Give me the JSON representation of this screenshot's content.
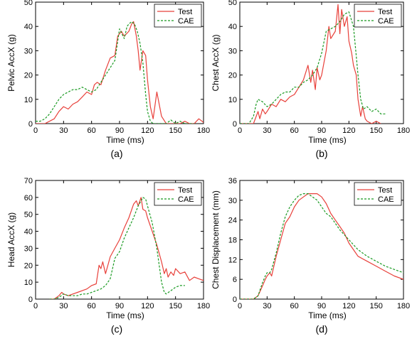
{
  "colors": {
    "test": "#e8403a",
    "cae": "#1a9a22",
    "axis": "#000000"
  },
  "chart_data": [
    {
      "panel": "(a)",
      "type": "line",
      "xlabel": "Time (ms)",
      "ylabel": "Pelvic AccX (g)",
      "xlim": [
        0,
        180
      ],
      "ylim": [
        0,
        50
      ],
      "xticks": [
        0,
        30,
        60,
        90,
        120,
        150,
        180
      ],
      "yticks": [
        0,
        10,
        20,
        30,
        40,
        50
      ],
      "legend": "top-right",
      "series": [
        {
          "name": "Test",
          "style": "solid",
          "color": "#e8403a",
          "x": [
            0,
            10,
            20,
            25,
            30,
            35,
            40,
            45,
            50,
            55,
            60,
            63,
            66,
            70,
            75,
            80,
            85,
            88,
            92,
            95,
            100,
            103,
            105,
            108,
            110,
            112,
            115,
            118,
            120,
            123,
            126,
            130,
            135,
            140,
            145,
            150,
            155,
            160,
            165,
            170,
            175,
            180
          ],
          "y": [
            0,
            0,
            2,
            5,
            7,
            6,
            8,
            9,
            11,
            13,
            12,
            16,
            17,
            16,
            22,
            27,
            28,
            36,
            38,
            36,
            38,
            41,
            42,
            36,
            30,
            22,
            30,
            28,
            18,
            7,
            2,
            13,
            3,
            0,
            0,
            0,
            0,
            1,
            0,
            0,
            2,
            0.5
          ]
        },
        {
          "name": "CAE",
          "style": "dashed",
          "color": "#1a9a22",
          "x": [
            0,
            5,
            10,
            15,
            20,
            25,
            30,
            35,
            40,
            45,
            50,
            55,
            60,
            65,
            70,
            75,
            80,
            85,
            90,
            95,
            98,
            100,
            103,
            106,
            109,
            112,
            115,
            118,
            120,
            123,
            126,
            130,
            135,
            140,
            145,
            150,
            155,
            160,
            165,
            170
          ],
          "y": [
            1,
            1,
            2,
            4,
            7,
            10,
            12,
            13,
            14,
            14,
            15,
            14,
            13,
            14,
            17,
            20,
            23,
            26,
            39,
            35,
            40,
            41,
            42,
            41,
            38,
            33,
            25,
            12,
            5,
            1,
            0,
            0,
            0,
            0,
            1.5,
            0,
            1,
            0,
            0,
            0
          ]
        }
      ]
    },
    {
      "panel": "(b)",
      "type": "line",
      "xlabel": "Time (ms)",
      "ylabel": "Chest AccX (g)",
      "xlim": [
        0,
        180
      ],
      "ylim": [
        0,
        50
      ],
      "xticks": [
        0,
        30,
        60,
        90,
        120,
        150,
        180
      ],
      "yticks": [
        0,
        10,
        20,
        30,
        40,
        50
      ],
      "legend": "top-right",
      "series": [
        {
          "name": "Test",
          "style": "solid",
          "color": "#e8403a",
          "x": [
            0,
            10,
            15,
            20,
            22,
            25,
            28,
            30,
            35,
            40,
            45,
            50,
            55,
            60,
            65,
            70,
            75,
            78,
            80,
            83,
            85,
            88,
            90,
            95,
            98,
            100,
            105,
            108,
            110,
            112,
            115,
            118,
            120,
            123,
            125,
            128,
            130,
            133,
            135,
            138,
            140,
            145,
            150,
            155
          ],
          "y": [
            0,
            0,
            0,
            5,
            2,
            6,
            4,
            5,
            8,
            7,
            10,
            9,
            11,
            12,
            15,
            18,
            24,
            17,
            22,
            14,
            23,
            18,
            20,
            30,
            40,
            35,
            38,
            49,
            37,
            47,
            40,
            44,
            34,
            29,
            24,
            20,
            10,
            3,
            7,
            2,
            1,
            0,
            1,
            0
          ]
        },
        {
          "name": "CAE",
          "style": "dashed",
          "color": "#1a9a22",
          "x": [
            0,
            10,
            15,
            18,
            20,
            25,
            30,
            35,
            40,
            45,
            50,
            55,
            60,
            65,
            70,
            75,
            80,
            85,
            90,
            95,
            100,
            105,
            110,
            115,
            120,
            125,
            128,
            130,
            133,
            136,
            140,
            145,
            150,
            155,
            160
          ],
          "y": [
            0,
            0,
            3,
            8,
            10,
            9,
            7,
            8,
            10,
            12,
            13,
            13,
            15,
            15,
            17,
            18,
            20,
            23,
            29,
            38,
            39,
            40,
            42,
            45,
            46,
            40,
            28,
            20,
            10,
            6,
            7,
            5,
            6,
            4,
            4
          ]
        }
      ]
    },
    {
      "panel": "(c)",
      "type": "line",
      "xlabel": "Time (ms)",
      "ylabel": "Head AccX (g)",
      "xlim": [
        0,
        180
      ],
      "ylim": [
        0,
        70
      ],
      "xticks": [
        0,
        30,
        60,
        90,
        120,
        150,
        180
      ],
      "yticks": [
        0,
        10,
        20,
        30,
        40,
        50,
        60,
        70
      ],
      "legend": "top-right",
      "series": [
        {
          "name": "Test",
          "style": "solid",
          "color": "#e8403a",
          "x": [
            15,
            20,
            25,
            28,
            30,
            35,
            40,
            45,
            50,
            55,
            60,
            65,
            68,
            70,
            72,
            75,
            78,
            80,
            85,
            90,
            95,
            100,
            105,
            108,
            110,
            113,
            115,
            118,
            120,
            125,
            130,
            135,
            138,
            140,
            142,
            145,
            148,
            150,
            155,
            160,
            165,
            170,
            175,
            180
          ],
          "y": [
            0,
            0,
            2,
            4,
            3,
            2,
            3,
            4,
            5,
            6,
            8,
            9,
            20,
            18,
            22,
            15,
            21,
            25,
            30,
            35,
            42,
            48,
            56,
            58,
            55,
            60,
            53,
            52,
            48,
            40,
            32,
            22,
            15,
            18,
            13,
            16,
            14,
            18,
            15,
            16,
            11,
            13,
            12,
            11
          ]
        },
        {
          "name": "CAE",
          "style": "dashed",
          "color": "#1a9a22",
          "x": [
            15,
            20,
            25,
            30,
            35,
            40,
            45,
            50,
            55,
            60,
            65,
            70,
            75,
            80,
            85,
            90,
            95,
            100,
            105,
            110,
            115,
            118,
            120,
            125,
            130,
            135,
            138,
            140,
            145,
            150,
            155,
            160
          ],
          "y": [
            0,
            0,
            1,
            3,
            2,
            2,
            2,
            3,
            3,
            4,
            5,
            6,
            8,
            12,
            24,
            28,
            36,
            42,
            48,
            55,
            60,
            59,
            55,
            45,
            30,
            10,
            4,
            3,
            5,
            7,
            8,
            8
          ]
        }
      ]
    },
    {
      "panel": "(d)",
      "type": "line",
      "xlabel": "Time (ms)",
      "ylabel": "Chest Displacement (mm)",
      "xlim": [
        0,
        180
      ],
      "ylim": [
        0,
        36
      ],
      "xticks": [
        0,
        30,
        60,
        90,
        120,
        150,
        180
      ],
      "yticks": [
        0,
        6,
        12,
        18,
        24,
        30,
        36
      ],
      "legend": "top-right",
      "series": [
        {
          "name": "Test",
          "style": "solid",
          "color": "#e8403a",
          "x": [
            0,
            15,
            20,
            25,
            28,
            30,
            33,
            35,
            40,
            45,
            50,
            55,
            60,
            65,
            70,
            75,
            80,
            85,
            90,
            95,
            100,
            105,
            110,
            115,
            120,
            125,
            130,
            140,
            150,
            160,
            170,
            180
          ],
          "y": [
            0,
            0,
            1,
            4,
            6,
            7,
            8,
            7,
            13,
            18,
            23,
            25,
            28,
            30,
            31,
            32,
            32,
            32,
            31,
            29,
            26,
            24,
            22,
            20,
            17,
            15,
            13,
            11.5,
            10,
            8.5,
            7,
            6
          ]
        },
        {
          "name": "CAE",
          "style": "dashed",
          "color": "#1a9a22",
          "x": [
            0,
            15,
            20,
            25,
            28,
            30,
            33,
            35,
            40,
            45,
            50,
            55,
            60,
            65,
            70,
            75,
            80,
            85,
            90,
            95,
            100,
            105,
            110,
            115,
            120,
            125,
            130,
            140,
            150,
            160,
            170,
            180
          ],
          "y": [
            0,
            0,
            1,
            5,
            7,
            8,
            8,
            9,
            14,
            20,
            25,
            28,
            30,
            31.5,
            32,
            32,
            31,
            30,
            28,
            26,
            25,
            23,
            21,
            19.5,
            18,
            16.5,
            15,
            13,
            11.5,
            10,
            9,
            8
          ]
        }
      ]
    }
  ]
}
